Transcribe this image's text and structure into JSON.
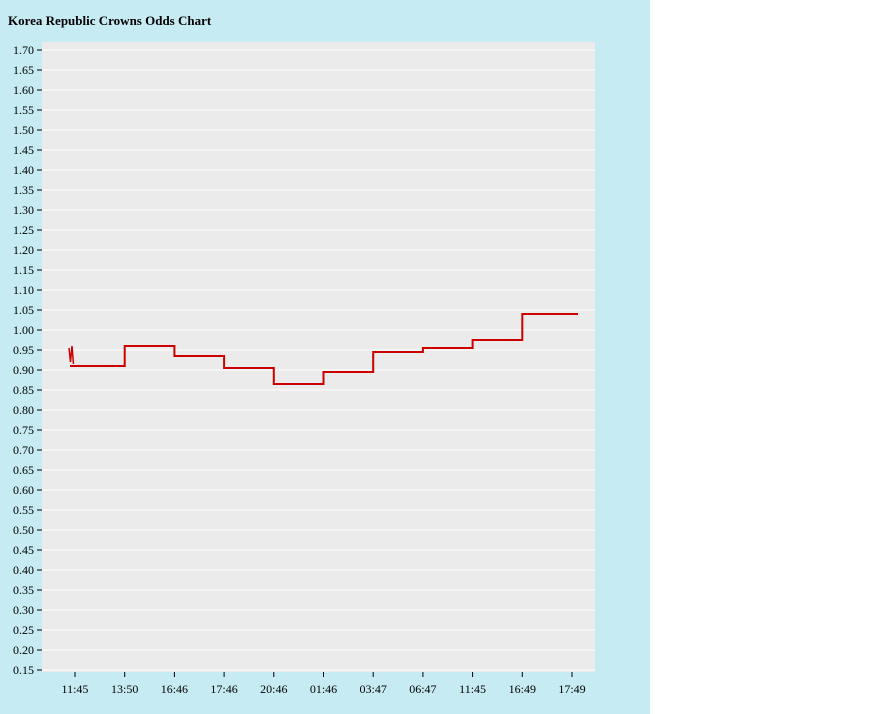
{
  "title": "Korea Republic Crowns Odds Chart",
  "colors": {
    "panel_bg": "#c7ebf3",
    "plot_bg": "#ebebeb",
    "grid": "#ffffff",
    "line": "#cc0000",
    "text": "#000000",
    "tick": "#000000"
  },
  "chart_data": {
    "type": "line",
    "step": true,
    "title": "Korea Republic Crowns Odds Chart",
    "xlabel": "",
    "ylabel": "",
    "grid": "horizontal",
    "legend_position": "none",
    "ylim": [
      0.15,
      1.7
    ],
    "y_step": 0.05,
    "y_tick_labels": [
      "1.70",
      "1.65",
      "1.60",
      "1.55",
      "1.50",
      "1.45",
      "1.40",
      "1.35",
      "1.30",
      "1.25",
      "1.20",
      "1.15",
      "1.10",
      "1.05",
      "1.00",
      "0.95",
      "0.90",
      "0.85",
      "0.80",
      "0.75",
      "0.70",
      "0.65",
      "0.60",
      "0.55",
      "0.50",
      "0.45",
      "0.40",
      "0.35",
      "0.30",
      "0.25",
      "0.20",
      "0.15"
    ],
    "x_tick_labels": [
      "11:45",
      "13:50",
      "16:46",
      "17:46",
      "20:46",
      "01:46",
      "03:47",
      "06:47",
      "11:45",
      "16:49",
      "17:49"
    ],
    "series": [
      {
        "name": "Korea Republic Crowns odds",
        "color": "#cc0000",
        "start_marker_values": [
          0.955,
          0.92,
          0.96,
          0.915
        ],
        "segment_values": [
          0.91,
          0.96,
          0.935,
          0.905,
          0.865,
          0.895,
          0.945,
          0.955,
          0.975,
          1.04
        ]
      }
    ]
  }
}
